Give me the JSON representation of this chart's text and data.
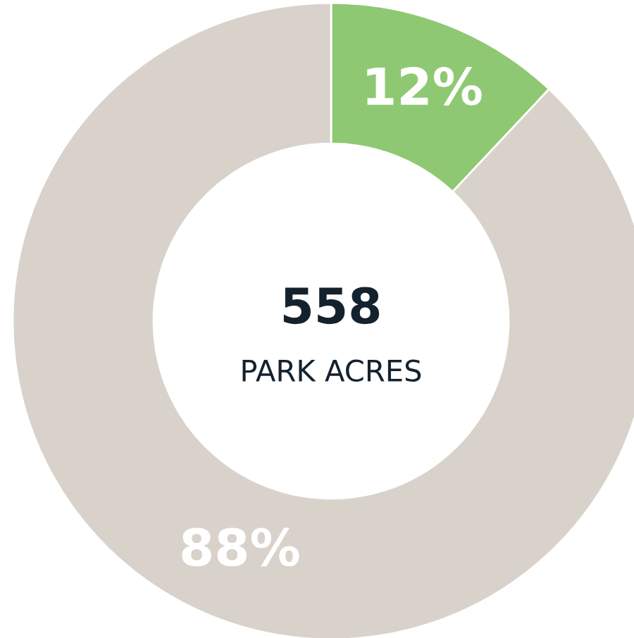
{
  "chart_data": {
    "type": "donut",
    "categories": [
      null,
      null
    ],
    "values": [
      12,
      88
    ],
    "colors": [
      "#8fc872",
      "#d8d2cb"
    ],
    "value_labels": [
      "12%",
      "88%"
    ],
    "annotations": [
      "558",
      "PARK ACRES"
    ],
    "legend": false
  }
}
